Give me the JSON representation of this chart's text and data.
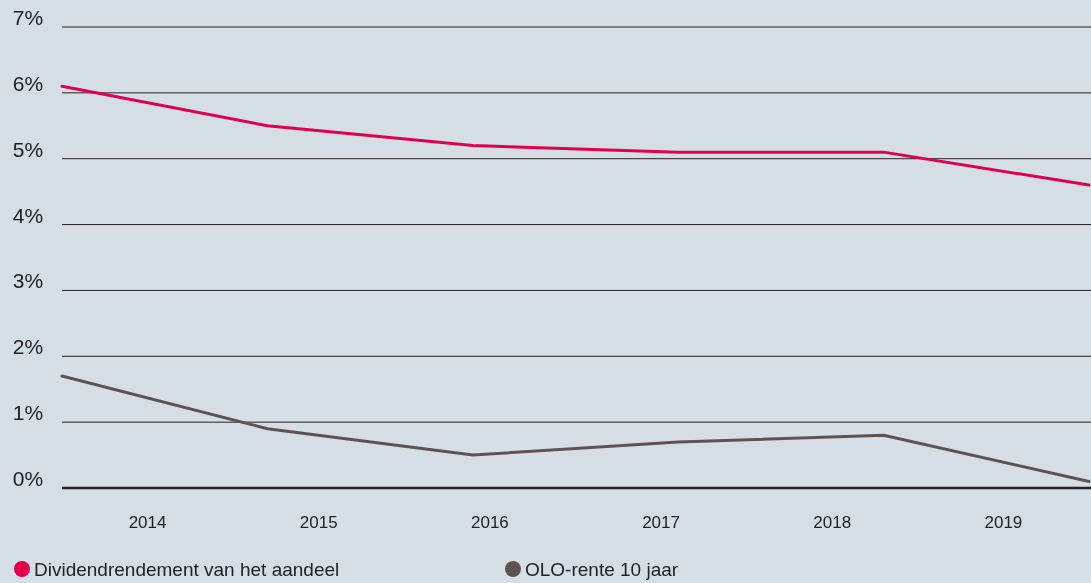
{
  "chart_data": {
    "type": "line",
    "x": [
      2013.5,
      2014.7,
      2015.9,
      2017.1,
      2018.3,
      2019.5
    ],
    "series": [
      {
        "name": "Dividendrendement van het aandeel",
        "color": "#e0004d",
        "values": [
          6.1,
          5.5,
          5.2,
          5.1,
          5.1,
          4.6
        ]
      },
      {
        "name": "OLO-rente 10 jaar",
        "color": "#5e5350",
        "values": [
          1.7,
          0.9,
          0.5,
          0.7,
          0.8,
          0.1
        ]
      }
    ],
    "xlim": [
      2013.5,
      2019.5
    ],
    "xticks": [
      2014,
      2015,
      2016,
      2017,
      2018,
      2019
    ],
    "ylim": [
      0,
      7
    ],
    "yticks": [
      {
        "value": 0,
        "label": "0%"
      },
      {
        "value": 1,
        "label": "1%"
      },
      {
        "value": 2,
        "label": "2%"
      },
      {
        "value": 3,
        "label": "3%"
      },
      {
        "value": 4,
        "label": "4%"
      },
      {
        "value": 5,
        "label": "5%"
      },
      {
        "value": 6,
        "label": "6%"
      },
      {
        "value": 7,
        "label": "7%"
      }
    ],
    "grid": "y",
    "legend": "bottom",
    "marker": "none",
    "line_style": "solid"
  }
}
